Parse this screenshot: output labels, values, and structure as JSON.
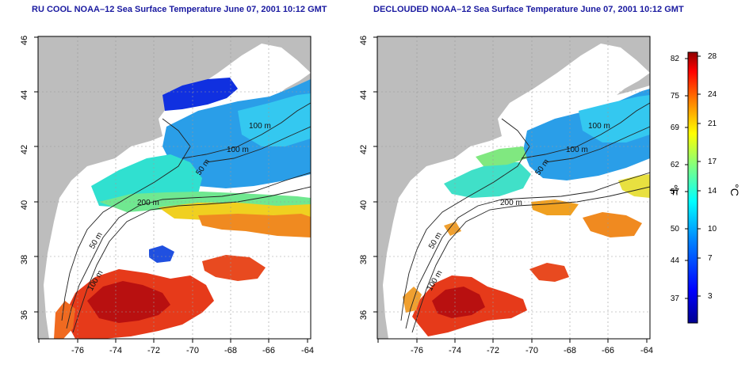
{
  "panels": [
    {
      "title": "RU COOL NOAA–12 Sea Surface Temperature June 07, 2001 10:12 GMT",
      "x_ticks": [
        "-76",
        "-74",
        "-72",
        "-70",
        "-68",
        "-66",
        "-64"
      ],
      "y_ticks": [
        "46",
        "44",
        "42",
        "40",
        "38",
        "36"
      ],
      "contour_labels": [
        "100 m",
        "100 m",
        "50 m",
        "200 m",
        "50 m",
        "100 m"
      ]
    },
    {
      "title": "DECLOUDED NOAA–12 Sea Surface Temperature June 07, 2001 10:12 GMT",
      "x_ticks": [
        "-76",
        "-74",
        "-72",
        "-70",
        "-68",
        "-66",
        "-64"
      ],
      "y_ticks": [
        "46",
        "44",
        "42",
        "40",
        "38",
        "36"
      ],
      "contour_labels": [
        "100 m",
        "100 m",
        "50 m",
        "200 m",
        "50 m",
        "100 m"
      ]
    }
  ],
  "colorbar": {
    "fahrenheit_label": "°F",
    "celsius_label": "°C",
    "fahrenheit_ticks": [
      "82",
      "75",
      "69",
      "62",
      "57",
      "50",
      "44",
      "37"
    ],
    "celsius_ticks": [
      "28",
      "24",
      "21",
      "17",
      "14",
      "10",
      "7",
      "3"
    ]
  },
  "colors": {
    "land": "#bdbdbd",
    "cloud": "#ffffff",
    "title": "#1a1aa0"
  }
}
